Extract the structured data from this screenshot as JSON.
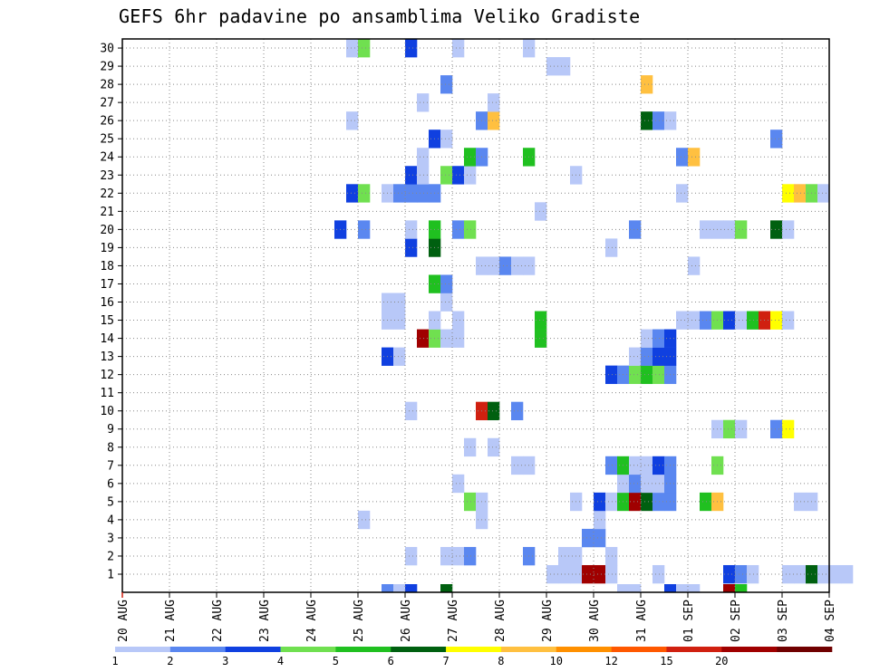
{
  "chart_data": {
    "type": "heatmap",
    "title": "GEFS 6hr padavine po ansamblima Veliko Gradiste",
    "xlabel": "",
    "ylabel": "",
    "x_ticks": [
      "20 AUG",
      "21 AUG",
      "22 AUG",
      "23 AUG",
      "24 AUG",
      "25 AUG",
      "26 AUG",
      "27 AUG",
      "28 AUG",
      "29 AUG",
      "30 AUG",
      "31 AUG",
      "01 SEP",
      "02 SEP",
      "03 SEP",
      "04 SEP"
    ],
    "y_ticks": [
      "1",
      "2",
      "3",
      "4",
      "5",
      "6",
      "7",
      "8",
      "9",
      "10",
      "11",
      "12",
      "13",
      "14",
      "15",
      "16",
      "17",
      "18",
      "19",
      "20",
      "21",
      "22",
      "23",
      "24",
      "25",
      "26",
      "27",
      "28",
      "29",
      "30"
    ],
    "ylim": [
      0,
      30
    ],
    "x_step_hours": 6,
    "grid": true,
    "legend": {
      "labels": [
        "1",
        "2",
        "3",
        "4",
        "5",
        "6",
        "7",
        "8",
        "10",
        "12",
        "15",
        "20"
      ],
      "colors": [
        "#b8c8f8",
        "#5a87f0",
        "#1040e0",
        "#70e050",
        "#20c020",
        "#006010",
        "#ffff00",
        "#ffc040",
        "#ff9000",
        "#ff5800",
        "#d02010",
        "#a00000",
        "#700000"
      ]
    },
    "member_rows": {
      "1": [
        [
          36,
          0
        ],
        [
          37,
          0
        ],
        [
          38,
          0
        ],
        [
          39,
          11
        ],
        [
          40,
          11
        ],
        [
          41,
          0
        ],
        [
          45,
          0
        ],
        [
          51,
          2
        ],
        [
          52,
          1
        ],
        [
          53,
          0
        ],
        [
          56,
          0
        ],
        [
          57,
          0
        ],
        [
          58,
          5
        ],
        [
          59,
          0
        ],
        [
          60,
          0
        ],
        [
          61,
          0
        ]
      ],
      "2": [
        [
          24,
          0
        ],
        [
          27,
          0
        ],
        [
          28,
          0
        ],
        [
          29,
          1
        ],
        [
          34,
          1
        ],
        [
          37,
          0
        ],
        [
          38,
          0
        ],
        [
          41,
          0
        ]
      ],
      "3": [
        [
          39,
          1
        ],
        [
          40,
          1
        ]
      ],
      "4": [
        [
          20,
          0
        ],
        [
          30,
          0
        ],
        [
          40,
          0
        ]
      ],
      "5": [
        [
          29,
          3
        ],
        [
          30,
          0
        ],
        [
          38,
          0
        ],
        [
          40,
          2
        ],
        [
          41,
          0
        ],
        [
          42,
          4
        ],
        [
          43,
          11
        ],
        [
          44,
          5
        ],
        [
          45,
          1
        ],
        [
          46,
          1
        ],
        [
          49,
          4
        ],
        [
          50,
          7
        ],
        [
          57,
          0
        ],
        [
          58,
          0
        ]
      ],
      "6": [
        [
          28,
          0
        ],
        [
          42,
          0
        ],
        [
          43,
          1
        ],
        [
          44,
          0
        ],
        [
          45,
          0
        ],
        [
          46,
          1
        ]
      ],
      "7": [
        [
          33,
          0
        ],
        [
          34,
          0
        ],
        [
          41,
          1
        ],
        [
          42,
          4
        ],
        [
          43,
          0
        ],
        [
          44,
          0
        ],
        [
          45,
          2
        ],
        [
          46,
          1
        ],
        [
          50,
          3
        ]
      ],
      "8": [
        [
          29,
          0
        ],
        [
          31,
          0
        ]
      ],
      "9": [
        [
          50,
          0
        ],
        [
          51,
          3
        ],
        [
          52,
          0
        ],
        [
          55,
          1
        ],
        [
          56,
          6
        ]
      ],
      "10": [
        [
          24,
          0
        ],
        [
          30,
          10
        ],
        [
          31,
          5
        ],
        [
          33,
          1
        ]
      ],
      "12": [
        [
          41,
          2
        ],
        [
          42,
          1
        ],
        [
          43,
          3
        ],
        [
          44,
          4
        ],
        [
          45,
          3
        ],
        [
          46,
          1
        ]
      ],
      "13": [
        [
          22,
          2
        ],
        [
          23,
          0
        ],
        [
          43,
          0
        ],
        [
          44,
          1
        ],
        [
          45,
          2
        ],
        [
          46,
          2
        ]
      ],
      "14": [
        [
          25,
          11
        ],
        [
          26,
          3
        ],
        [
          27,
          0
        ],
        [
          28,
          0
        ],
        [
          35,
          4
        ],
        [
          44,
          0
        ],
        [
          45,
          1
        ],
        [
          46,
          2
        ]
      ],
      "15": [
        [
          22,
          0
        ],
        [
          23,
          0
        ],
        [
          26,
          0
        ],
        [
          28,
          0
        ],
        [
          35,
          4
        ],
        [
          47,
          0
        ],
        [
          48,
          0
        ],
        [
          49,
          1
        ],
        [
          50,
          3
        ],
        [
          51,
          2
        ],
        [
          52,
          0
        ],
        [
          53,
          4
        ],
        [
          54,
          10
        ],
        [
          55,
          6
        ],
        [
          56,
          0
        ]
      ],
      "16": [
        [
          22,
          0
        ],
        [
          23,
          0
        ],
        [
          27,
          0
        ]
      ],
      "17": [
        [
          26,
          4
        ],
        [
          27,
          1
        ]
      ],
      "18": [
        [
          30,
          0
        ],
        [
          31,
          0
        ],
        [
          32,
          1
        ],
        [
          33,
          0
        ],
        [
          34,
          0
        ],
        [
          48,
          0
        ]
      ],
      "19": [
        [
          24,
          2
        ],
        [
          26,
          5
        ],
        [
          41,
          0
        ]
      ],
      "20": [
        [
          18,
          2
        ],
        [
          20,
          1
        ],
        [
          24,
          0
        ],
        [
          26,
          4
        ],
        [
          28,
          1
        ],
        [
          29,
          3
        ],
        [
          43,
          1
        ],
        [
          49,
          0
        ],
        [
          50,
          0
        ],
        [
          51,
          0
        ],
        [
          52,
          3
        ],
        [
          55,
          5
        ],
        [
          56,
          0
        ]
      ],
      "21": [
        [
          35,
          0
        ]
      ],
      "22": [
        [
          19,
          2
        ],
        [
          20,
          3
        ],
        [
          22,
          0
        ],
        [
          23,
          1
        ],
        [
          24,
          1
        ],
        [
          25,
          1
        ],
        [
          26,
          1
        ],
        [
          47,
          0
        ],
        [
          56,
          6
        ],
        [
          57,
          7
        ],
        [
          58,
          3
        ],
        [
          59,
          0
        ]
      ],
      "23": [
        [
          24,
          2
        ],
        [
          25,
          0
        ],
        [
          27,
          3
        ],
        [
          28,
          2
        ],
        [
          29,
          0
        ],
        [
          38,
          0
        ]
      ],
      "24": [
        [
          25,
          0
        ],
        [
          29,
          4
        ],
        [
          30,
          1
        ],
        [
          34,
          4
        ],
        [
          47,
          1
        ],
        [
          48,
          7
        ]
      ],
      "25": [
        [
          26,
          2
        ],
        [
          27,
          0
        ],
        [
          55,
          1
        ]
      ],
      "26": [
        [
          19,
          0
        ],
        [
          30,
          1
        ],
        [
          31,
          7
        ],
        [
          44,
          5
        ],
        [
          45,
          1
        ],
        [
          46,
          0
        ]
      ],
      "27": [
        [
          25,
          0
        ],
        [
          31,
          0
        ]
      ],
      "28": [
        [
          27,
          1
        ],
        [
          44,
          7
        ]
      ],
      "29": [
        [
          36,
          0
        ],
        [
          37,
          0
        ]
      ],
      "30": [
        [
          19,
          0
        ],
        [
          20,
          3
        ],
        [
          24,
          2
        ],
        [
          28,
          0
        ],
        [
          34,
          0
        ]
      ]
    },
    "base_row": [
      [
        22,
        1
      ],
      [
        23,
        0
      ],
      [
        24,
        2
      ],
      [
        27,
        5
      ],
      [
        42,
        0
      ],
      [
        43,
        0
      ],
      [
        46,
        2
      ],
      [
        47,
        0
      ],
      [
        48,
        0
      ],
      [
        51,
        11
      ],
      [
        52,
        4
      ]
    ]
  }
}
